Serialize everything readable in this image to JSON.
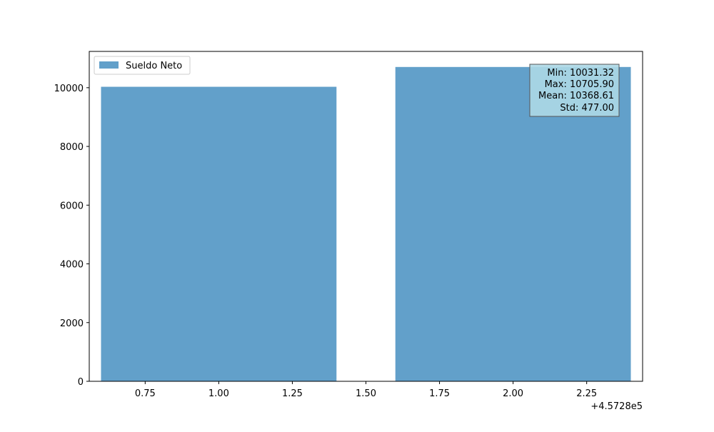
{
  "chart_data": {
    "type": "bar",
    "x": [
      1.0,
      2.0
    ],
    "series": [
      {
        "name": "Sueldo Neto",
        "values": [
          10031.32,
          10705.9
        ]
      }
    ],
    "bar_width": 0.8,
    "xlim": [
      0.56,
      2.44
    ],
    "ylim": [
      0,
      11236.2
    ],
    "x_ticks": [
      0.75,
      1.0,
      1.25,
      1.5,
      1.75,
      2.0,
      2.25
    ],
    "x_tick_labels": [
      "0.75",
      "1.00",
      "1.25",
      "1.50",
      "1.75",
      "2.00",
      "2.25"
    ],
    "x_offset_label": "+4.5728e5",
    "y_ticks": [
      0,
      2000,
      4000,
      6000,
      8000,
      10000
    ],
    "y_tick_labels": [
      "0",
      "2000",
      "4000",
      "6000",
      "8000",
      "10000"
    ],
    "legend": {
      "entries": [
        "Sueldo Neto"
      ],
      "placement": "upper-left"
    },
    "stats_box": {
      "placement": "upper-right",
      "lines": [
        "Min: 10031.32",
        "Max: 10705.90",
        "Mean: 10368.61",
        "Std: 477.00"
      ]
    },
    "grid": false,
    "colors": {
      "bar": "#1f77b4",
      "bar_alpha": 0.7,
      "stats_box_bg": "#add8e6"
    }
  }
}
